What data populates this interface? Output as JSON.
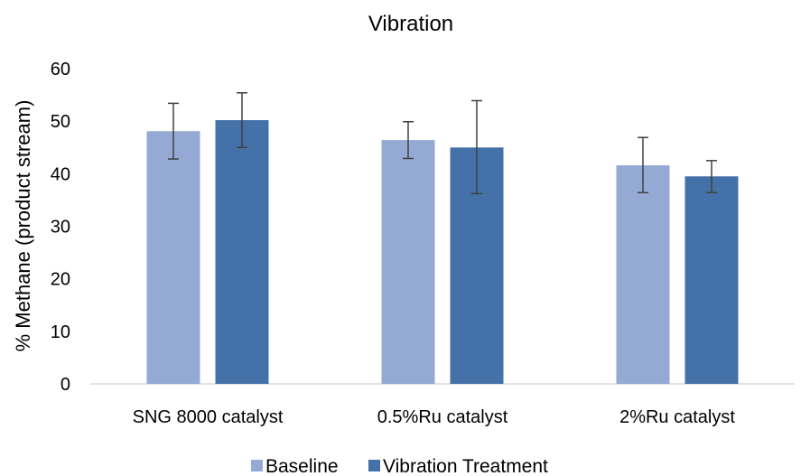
{
  "chart_data": {
    "type": "bar",
    "title": "Vibration",
    "xlabel": "",
    "ylabel": "% Methane (product stream)",
    "ylim": [
      0,
      60
    ],
    "yticks": [
      0,
      10,
      20,
      30,
      40,
      50,
      60
    ],
    "categories": [
      "SNG 8000 catalyst",
      "0.5%Ru catalyst",
      "2%Ru catalyst"
    ],
    "series": [
      {
        "name": "Baseline",
        "color": "#94aad4",
        "values": [
          48.1,
          46.4,
          41.6
        ],
        "error_low": [
          42.8,
          42.9,
          36.4
        ],
        "error_high": [
          53.4,
          49.9,
          46.9
        ]
      },
      {
        "name": "Vibration Treatment",
        "color": "#4472a8",
        "values": [
          50.2,
          45.0,
          39.5
        ],
        "error_low": [
          45.0,
          36.2,
          36.4
        ],
        "error_high": [
          55.4,
          53.9,
          42.5
        ]
      }
    ],
    "grid": false,
    "legend": "bottom"
  }
}
